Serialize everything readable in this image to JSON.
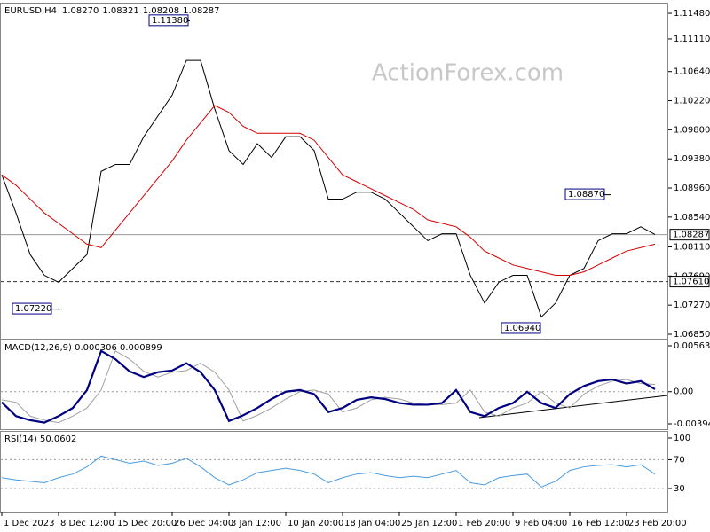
{
  "chart_data": [
    {
      "type": "line",
      "title": "EURUSD,H4",
      "ohlc_labels": [
        "1.08270",
        "1.08321",
        "1.08208",
        "1.08287"
      ],
      "watermark": "ActionForex.com",
      "ylim": [
        1.06786,
        1.11621
      ],
      "yticks": [
        {
          "value": 1.1148,
          "label": "1.11480"
        },
        {
          "value": 1.1111,
          "label": "1.11110"
        },
        {
          "value": 1.1064,
          "label": "1.10640"
        },
        {
          "value": 1.1022,
          "label": "1.10220"
        },
        {
          "value": 1.098,
          "label": "1.09800"
        },
        {
          "value": 1.0938,
          "label": "1.09380"
        },
        {
          "value": 1.0896,
          "label": "1.08960"
        },
        {
          "value": 1.0854,
          "label": "1.08540"
        },
        {
          "value": 1.0811,
          "label": "1.08110"
        },
        {
          "value": 1.0769,
          "label": "1.07690"
        },
        {
          "value": 1.0727,
          "label": "1.07270"
        },
        {
          "value": 1.0685,
          "label": "1.06850"
        }
      ],
      "levels": [
        {
          "value": 1.08287,
          "label": "1.08287",
          "style": "solid"
        },
        {
          "value": 1.0761,
          "label": "1.07610",
          "style": "dashed"
        }
      ],
      "annotations": [
        {
          "value": 1.1138,
          "label": "1.11380"
        },
        {
          "value": 1.0722,
          "label": "1.07220"
        },
        {
          "value": 1.0694,
          "label": "1.06940"
        },
        {
          "value": 1.0887,
          "label": "1.08870"
        }
      ],
      "series": [
        {
          "color": "#000000",
          "width": 1,
          "values": [
            1.0915,
            1.086,
            1.08,
            1.077,
            1.076,
            1.078,
            1.08,
            1.092,
            1.093,
            1.093,
            1.097,
            1.1,
            1.103,
            1.108,
            1.108,
            1.101,
            1.095,
            1.093,
            1.096,
            1.094,
            1.097,
            1.097,
            1.095,
            1.088,
            1.088,
            1.089,
            1.089,
            1.088,
            1.086,
            1.084,
            1.082,
            1.083,
            1.083,
            1.077,
            1.073,
            1.076,
            1.077,
            1.077,
            1.071,
            1.073,
            1.077,
            1.078,
            1.082,
            1.083,
            1.083,
            1.084,
            1.0829
          ]
        },
        {
          "color": "#d40000",
          "width": 1,
          "values": [
            1.0915,
            1.09,
            1.088,
            1.086,
            1.0845,
            1.083,
            1.0815,
            1.081,
            1.0835,
            1.086,
            1.0885,
            1.091,
            1.0935,
            1.0965,
            1.099,
            1.1015,
            1.1005,
            1.0985,
            1.0975,
            1.0975,
            1.0975,
            1.0975,
            1.0965,
            1.094,
            1.0915,
            1.0905,
            1.0895,
            1.0885,
            1.0875,
            1.0865,
            1.085,
            1.0845,
            1.084,
            1.0825,
            1.0805,
            1.0795,
            1.0785,
            1.078,
            1.0775,
            1.077,
            1.077,
            1.0775,
            1.0785,
            1.0795,
            1.0805,
            1.081,
            1.0815
          ]
        }
      ]
    },
    {
      "type": "line",
      "title": "MACD(12,26,9) 0.000306 0.000899",
      "ylim": [
        -0.004602,
        0.006288
      ],
      "yticks": [
        0.005635,
        {
          "value": 0,
          "label": "0.00"
        },
        -0.003949
      ],
      "levels": [
        0
      ],
      "series": [
        {
          "color": "#a0a0a0",
          "width": 1,
          "values": [
            -0.001,
            -0.0013,
            -0.003,
            -0.0035,
            -0.0038,
            -0.003,
            -0.002,
            0.0002,
            0.005,
            0.004,
            0.0025,
            0.0018,
            0.0024,
            0.0026,
            0.0035,
            0.0024,
            0.0002,
            -0.0036,
            -0.0029,
            -0.002,
            -0.0009,
            0.0,
            0.0002,
            -0.0003,
            -0.0025,
            -0.002,
            -0.001,
            -0.0007,
            -0.0009,
            -0.0014,
            -0.0016,
            -0.0016,
            -0.0014,
            0.0002,
            -0.0025,
            -0.003,
            -0.002,
            -0.0014,
            0.0,
            -0.0014,
            -0.002,
            -0.0003,
            0.0007,
            0.0013,
            0.0015,
            0.001,
            0.0009
          ]
        },
        {
          "color": "#000080",
          "width": 2.2,
          "values": [
            -0.0013,
            -0.003,
            -0.0035,
            -0.0038,
            -0.003,
            -0.002,
            0.0002,
            0.005,
            0.004,
            0.0025,
            0.0018,
            0.0024,
            0.0026,
            0.0035,
            0.0024,
            0.0002,
            -0.0036,
            -0.0029,
            -0.002,
            -0.0009,
            0.0,
            0.0002,
            -0.0003,
            -0.0025,
            -0.002,
            -0.001,
            -0.0007,
            -0.0009,
            -0.0014,
            -0.0016,
            -0.0016,
            -0.0014,
            0.0002,
            -0.0025,
            -0.003,
            -0.002,
            -0.0014,
            0.0,
            -0.0014,
            -0.002,
            -0.0003,
            0.0007,
            0.0013,
            0.0015,
            0.001,
            0.0013,
            0.000306
          ]
        }
      ]
    },
    {
      "type": "line",
      "title": "RSI(14) 50.0602",
      "ylim": [
        -3.2,
        108.6
      ],
      "yticks": [
        100,
        70,
        30
      ],
      "levels": [
        70,
        30
      ],
      "categories": [
        "1 Dec 2023",
        null,
        null,
        null,
        "8 Dec 12:00",
        null,
        null,
        null,
        "15 Dec 20:00",
        null,
        null,
        null,
        "26 Dec 04:00",
        null,
        null,
        null,
        "3 Jan 12:00",
        null,
        null,
        null,
        "10 Jan 20:00",
        null,
        null,
        null,
        "18 Jan 04:00",
        null,
        null,
        null,
        "25 Jan 12:00",
        null,
        null,
        null,
        "1 Feb 20:00",
        null,
        null,
        null,
        "9 Feb 04:00",
        null,
        null,
        null,
        "16 Feb 12:00",
        null,
        null,
        null,
        "23 Feb 20:00",
        null,
        null
      ],
      "series": [
        {
          "color": "#4a9be0",
          "width": 1,
          "values": [
            45,
            42,
            40,
            38,
            45,
            50,
            60,
            75,
            70,
            65,
            68,
            62,
            65,
            72,
            60,
            45,
            35,
            42,
            52,
            55,
            58,
            55,
            50,
            38,
            45,
            50,
            52,
            48,
            45,
            47,
            45,
            50,
            55,
            38,
            35,
            45,
            48,
            50,
            32,
            40,
            55,
            60,
            62,
            63,
            60,
            63,
            50.0602
          ]
        }
      ]
    }
  ]
}
